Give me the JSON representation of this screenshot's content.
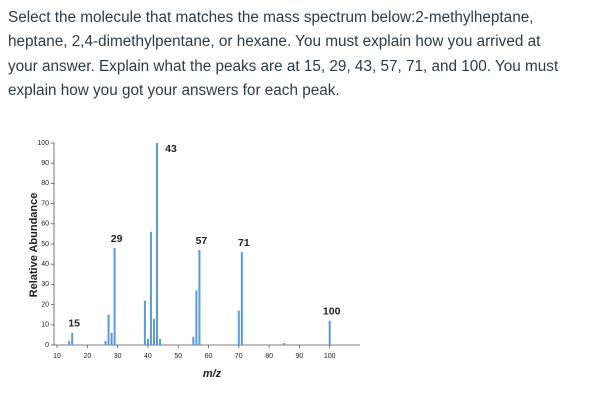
{
  "question_lines": [
    "Select the molecule that matches the mass spectrum below:2-methylheptane,",
    "heptane, 2,4-dimethylpentane, or hexane. You must explain how you arrived at",
    "your answer. Explain what the peaks are at 15, 29, 43, 57, 71, and 100. You must",
    "explain how you got your answers for each peak."
  ],
  "chart_data": {
    "type": "bar",
    "x_label": "m/z",
    "y_label": "Relative Abundance",
    "x": [
      14,
      15,
      26,
      27,
      28,
      29,
      39,
      40,
      41,
      42,
      43,
      44,
      55,
      56,
      57,
      70,
      71,
      85,
      100
    ],
    "values": [
      2,
      6,
      2,
      15,
      6,
      48,
      22,
      3,
      56,
      13,
      100,
      3,
      4,
      27,
      47,
      17,
      46,
      1,
      12
    ],
    "peak_labels": [
      15,
      29,
      43,
      57,
      71,
      100
    ],
    "color": "#5b9bd5",
    "xlim": [
      9,
      110
    ],
    "xticks": [
      10,
      20,
      30,
      40,
      50,
      60,
      70,
      80,
      90,
      100
    ],
    "ylim": [
      0,
      100
    ],
    "yticks": [
      0,
      10,
      20,
      30,
      40,
      50,
      60,
      70,
      80,
      90,
      100
    ]
  }
}
